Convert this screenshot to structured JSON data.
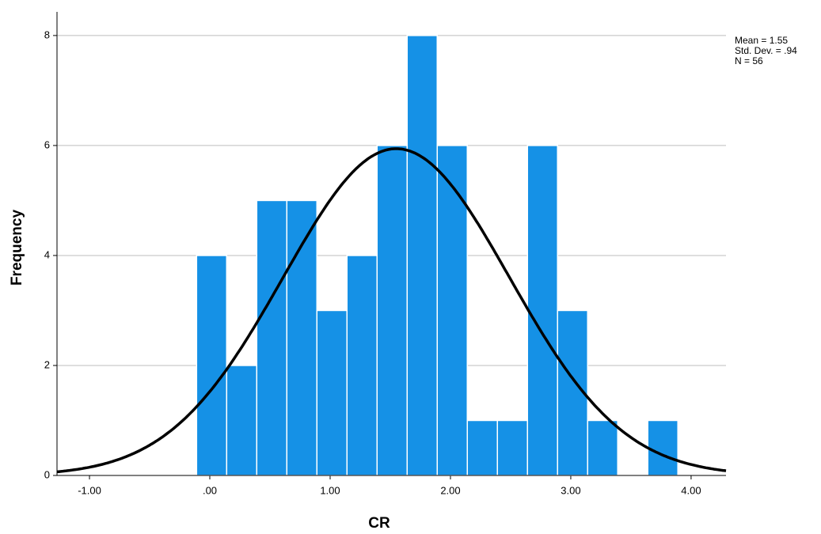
{
  "chart_data": {
    "type": "histogram",
    "x_label": "CR",
    "y_label": "Frequency",
    "bins": [
      -0.11,
      0.14,
      0.39,
      0.64,
      0.89,
      1.14,
      1.39,
      1.64,
      1.89,
      2.14,
      2.39,
      2.64,
      2.89,
      3.14,
      3.39,
      3.64,
      3.89
    ],
    "counts": [
      4,
      2,
      5,
      5,
      3,
      4,
      6,
      8,
      6,
      1,
      1,
      6,
      3,
      1,
      0,
      1
    ],
    "color": "#1591e6",
    "normal_curve": {
      "mean": 1.55,
      "sd": 0.94,
      "n": 56,
      "color": "#000000"
    },
    "stats": [
      "Mean = 1.55",
      "Std. Dev. = .94",
      "N = 56"
    ],
    "xlim": [
      -1.27,
      4.29
    ],
    "xticks": [
      {
        "value": -1,
        "label": "-1.00"
      },
      {
        "value": 0,
        "label": ".00"
      },
      {
        "value": 1,
        "label": "1.00"
      },
      {
        "value": 2,
        "label": "2.00"
      },
      {
        "value": 3,
        "label": "3.00"
      },
      {
        "value": 4,
        "label": "4.00"
      }
    ],
    "ylim": [
      0,
      8.43
    ],
    "yticks": [
      0,
      2,
      4,
      6,
      8
    ],
    "grid": true
  }
}
